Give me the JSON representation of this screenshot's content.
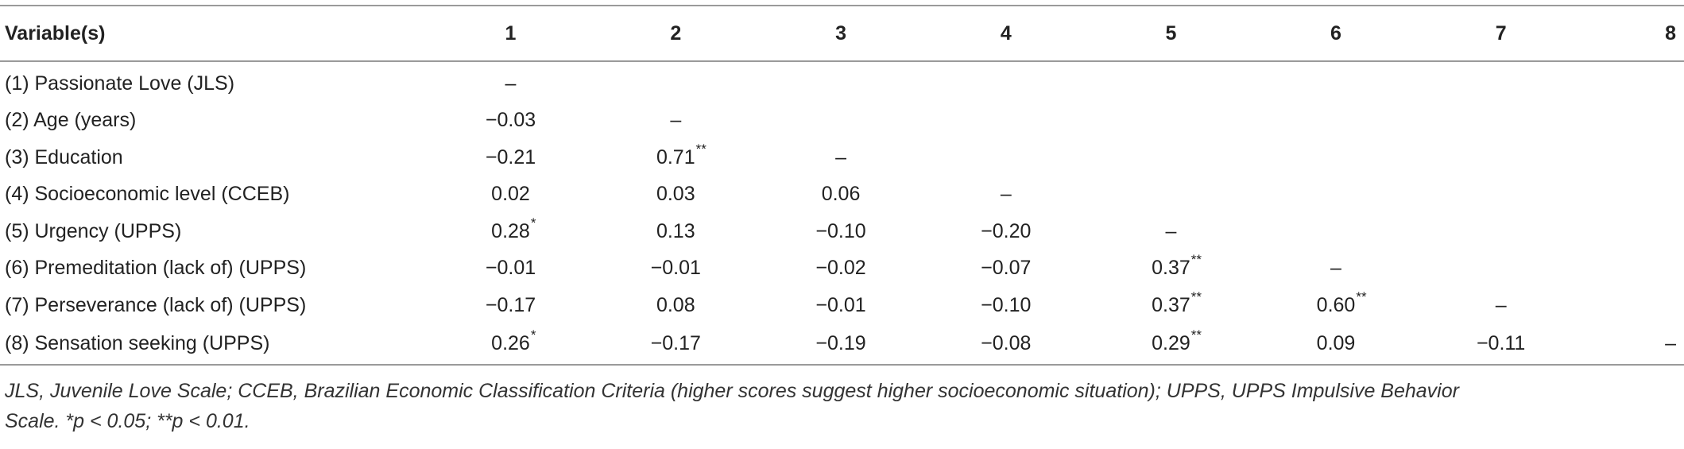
{
  "table": {
    "headers": [
      "Variable(s)",
      "1",
      "2",
      "3",
      "4",
      "5",
      "6",
      "7",
      "8"
    ],
    "rows": [
      {
        "label": "(1) Passionate Love (JLS)",
        "cells": [
          "–",
          "",
          "",
          "",
          "",
          "",
          "",
          ""
        ]
      },
      {
        "label": "(2) Age (years)",
        "cells": [
          "−0.03",
          "–",
          "",
          "",
          "",
          "",
          "",
          ""
        ]
      },
      {
        "label": "(3) Education",
        "cells": [
          "−0.21",
          "0.71**",
          "–",
          "",
          "",
          "",
          "",
          ""
        ]
      },
      {
        "label": "(4) Socioeconomic level (CCEB)",
        "cells": [
          "0.02",
          "0.03",
          "0.06",
          "–",
          "",
          "",
          "",
          ""
        ]
      },
      {
        "label": "(5) Urgency (UPPS)",
        "cells": [
          "0.28*",
          "0.13",
          "−0.10",
          "−0.20",
          "–",
          "",
          "",
          ""
        ]
      },
      {
        "label": "(6) Premeditation (lack of) (UPPS)",
        "cells": [
          "−0.01",
          "−0.01",
          "−0.02",
          "−0.07",
          "0.37**",
          "–",
          "",
          ""
        ]
      },
      {
        "label": "(7) Perseverance (lack of) (UPPS)",
        "cells": [
          "−0.17",
          "0.08",
          "−0.01",
          "−0.10",
          "0.37**",
          "0.60**",
          "–",
          ""
        ]
      },
      {
        "label": "(8) Sensation seeking (UPPS)",
        "cells": [
          "0.26*",
          "−0.17",
          "−0.19",
          "−0.08",
          "0.29**",
          "0.09",
          "−0.11",
          "–"
        ]
      }
    ]
  },
  "note": {
    "line1": "JLS, Juvenile Love Scale; CCEB, Brazilian Economic Classification Criteria (higher scores suggest higher socioeconomic situation); UPPS, UPPS Impulsive Behavior",
    "line2": "Scale. *p < 0.05; **p < 0.01."
  }
}
